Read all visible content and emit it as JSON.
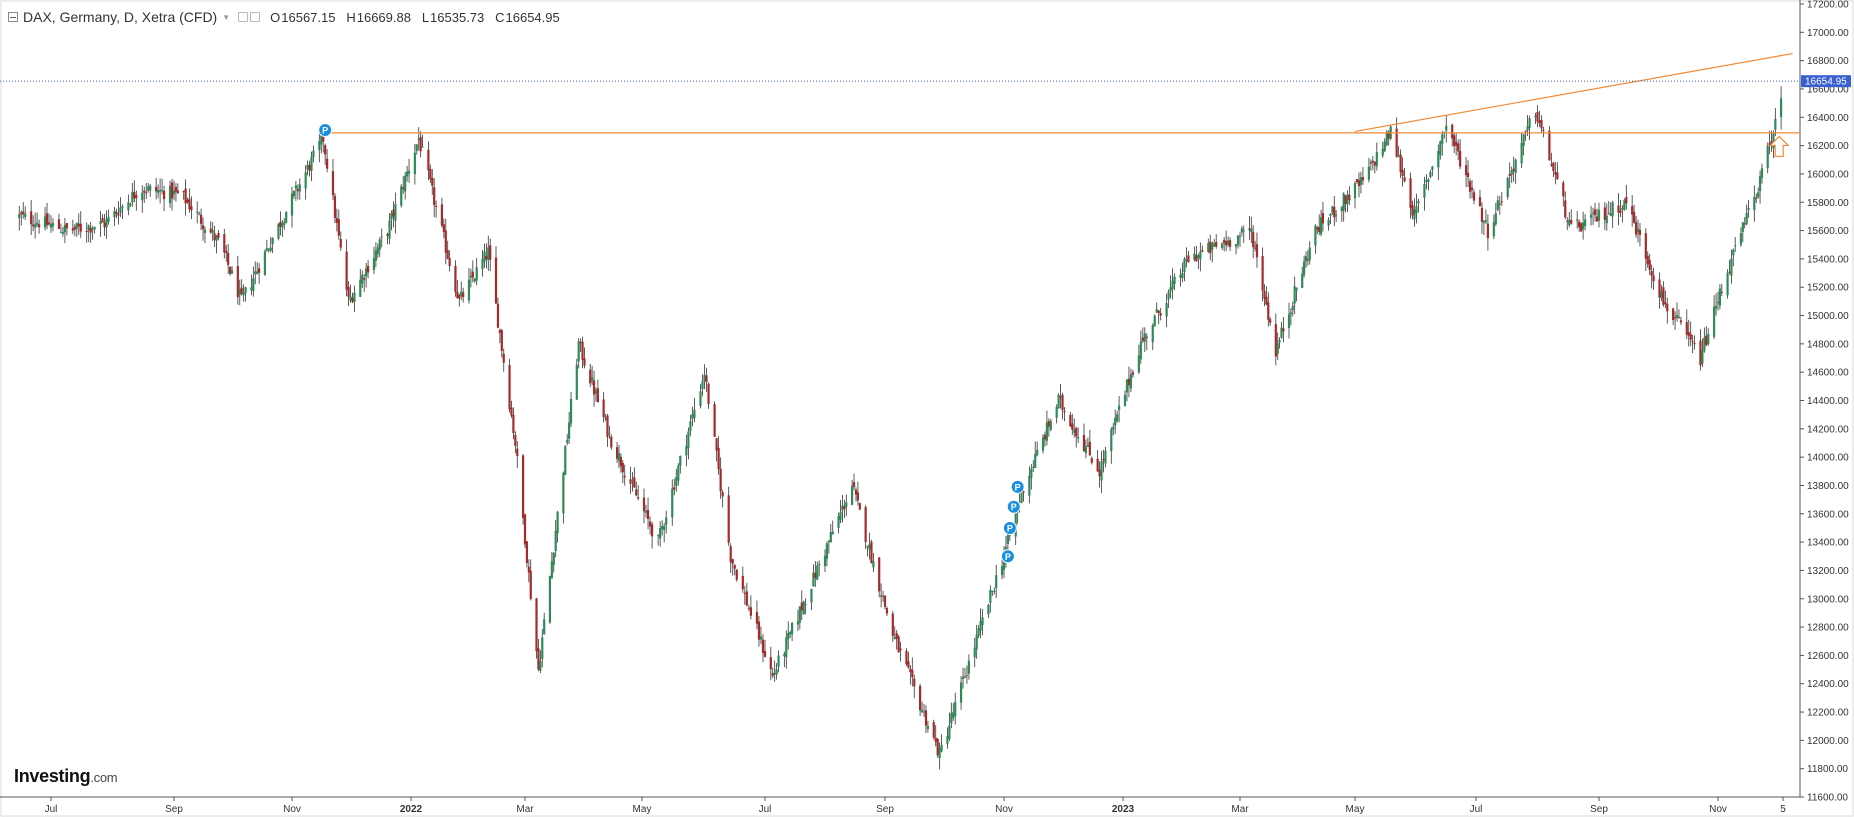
{
  "header": {
    "symbol": "DAX, Germany, D, Xetra (CFD)",
    "open_label": "O",
    "open": "16567.15",
    "high_label": "H",
    "high": "16669.88",
    "low_label": "L",
    "low": "16535.73",
    "close_label": "C",
    "close": "16654.95"
  },
  "brand": {
    "name": "Investing",
    "suffix": ".com"
  },
  "colors": {
    "up": "#2e8b57",
    "down": "#a52a2a",
    "trendline": "#f08a38",
    "last_price": "#3a5fd0",
    "marker": "#1a8fe0"
  },
  "chart_data": {
    "type": "candlestick",
    "title": "",
    "xlabel": "",
    "ylabel": "",
    "ylim": [
      11600,
      17200
    ],
    "y_ticks": [
      "17200.00",
      "17000.00",
      "16800.00",
      "16600.00",
      "16400.00",
      "16200.00",
      "16000.00",
      "15800.00",
      "15600.00",
      "15400.00",
      "15200.00",
      "15000.00",
      "14800.00",
      "14600.00",
      "14400.00",
      "14200.00",
      "14000.00",
      "13800.00",
      "13600.00",
      "13400.00",
      "13200.00",
      "13000.00",
      "12800.00",
      "12600.00",
      "12400.00",
      "12200.00",
      "12000.00",
      "11800.00",
      "11600.00"
    ],
    "x_ticks": [
      {
        "label": "Jul",
        "date": "2021-07-01"
      },
      {
        "label": "Sep",
        "date": "2021-09-01"
      },
      {
        "label": "Nov",
        "date": "2021-11-01"
      },
      {
        "label": "2022",
        "date": "2022-01-01"
      },
      {
        "label": "Mar",
        "date": "2022-03-01"
      },
      {
        "label": "May",
        "date": "2022-05-01"
      },
      {
        "label": "Jul",
        "date": "2022-07-01"
      },
      {
        "label": "Sep",
        "date": "2022-09-01"
      },
      {
        "label": "Nov",
        "date": "2022-11-01"
      },
      {
        "label": "2023",
        "date": "2023-01-01"
      },
      {
        "label": "Mar",
        "date": "2023-03-01"
      },
      {
        "label": "May",
        "date": "2023-05-01"
      },
      {
        "label": "Jul",
        "date": "2023-07-01"
      },
      {
        "label": "Sep",
        "date": "2023-09-01"
      },
      {
        "label": "Nov",
        "date": "2023-11-01"
      },
      {
        "label": "5",
        "date": "2023-12-05"
      }
    ],
    "close_path": [
      {
        "date": "2021-06-15",
        "close": 15700
      },
      {
        "date": "2021-07-10",
        "close": 15600
      },
      {
        "date": "2021-07-28",
        "close": 15650
      },
      {
        "date": "2021-08-15",
        "close": 15900
      },
      {
        "date": "2021-09-05",
        "close": 15850
      },
      {
        "date": "2021-09-25",
        "close": 15500
      },
      {
        "date": "2021-10-06",
        "close": 15100
      },
      {
        "date": "2021-10-22",
        "close": 15550
      },
      {
        "date": "2021-11-17",
        "close": 16250
      },
      {
        "date": "2021-11-30",
        "close": 15100
      },
      {
        "date": "2021-12-20",
        "close": 15600
      },
      {
        "date": "2022-01-05",
        "close": 16250
      },
      {
        "date": "2022-01-26",
        "close": 15100
      },
      {
        "date": "2022-02-10",
        "close": 15450
      },
      {
        "date": "2022-02-24",
        "close": 14100
      },
      {
        "date": "2022-03-08",
        "close": 12500
      },
      {
        "date": "2022-03-29",
        "close": 14800
      },
      {
        "date": "2022-04-14",
        "close": 14150
      },
      {
        "date": "2022-05-09",
        "close": 13400
      },
      {
        "date": "2022-06-01",
        "close": 14600
      },
      {
        "date": "2022-06-14",
        "close": 13300
      },
      {
        "date": "2022-07-05",
        "close": 12450
      },
      {
        "date": "2022-08-15",
        "close": 13800
      },
      {
        "date": "2022-09-05",
        "close": 12750
      },
      {
        "date": "2022-09-29",
        "close": 11900
      },
      {
        "date": "2022-10-20",
        "close": 12800
      },
      {
        "date": "2022-11-03",
        "close": 13400
      },
      {
        "date": "2022-11-10",
        "close": 13750
      },
      {
        "date": "2022-11-29",
        "close": 14400
      },
      {
        "date": "2022-12-20",
        "close": 13900
      },
      {
        "date": "2023-01-10",
        "close": 14800
      },
      {
        "date": "2023-02-03",
        "close": 15400
      },
      {
        "date": "2023-03-07",
        "close": 15600
      },
      {
        "date": "2023-03-20",
        "close": 14750
      },
      {
        "date": "2023-04-10",
        "close": 15600
      },
      {
        "date": "2023-05-05",
        "close": 15950
      },
      {
        "date": "2023-05-19",
        "close": 16300
      },
      {
        "date": "2023-05-31",
        "close": 15700
      },
      {
        "date": "2023-06-16",
        "close": 16350
      },
      {
        "date": "2023-07-07",
        "close": 15600
      },
      {
        "date": "2023-07-31",
        "close": 16450
      },
      {
        "date": "2023-08-18",
        "close": 15600
      },
      {
        "date": "2023-09-15",
        "close": 15800
      },
      {
        "date": "2023-10-04",
        "close": 15100
      },
      {
        "date": "2023-10-23",
        "close": 14700
      },
      {
        "date": "2023-11-03",
        "close": 15200
      },
      {
        "date": "2023-11-23",
        "close": 15950
      },
      {
        "date": "2023-12-01",
        "close": 16350
      },
      {
        "date": "2023-12-05",
        "close": 16654.95
      }
    ],
    "last_price": {
      "value": 16654.95,
      "label": "16654.95"
    },
    "horizontal_line": {
      "value": 16290
    },
    "trendline": [
      {
        "date": "2023-05-01",
        "value": 16300
      },
      {
        "date": "2023-12-10",
        "value": 16850
      }
    ],
    "markers": [
      {
        "label": "P",
        "date": "2021-11-18",
        "value": 16310
      },
      {
        "label": "P",
        "date": "2022-11-03",
        "value": 13300
      },
      {
        "label": "P",
        "date": "2022-11-04",
        "value": 13500
      },
      {
        "label": "P",
        "date": "2022-11-06",
        "value": 13650
      },
      {
        "label": "P",
        "date": "2022-11-08",
        "value": 13790
      }
    ],
    "annotations": [
      {
        "type": "up-arrow",
        "date": "2023-12-03",
        "value": 16180
      }
    ],
    "grid": false,
    "legend": "none"
  }
}
